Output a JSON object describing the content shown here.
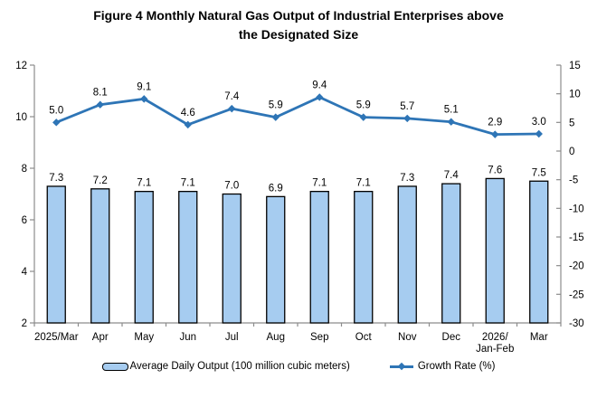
{
  "title": "Figure 4 Monthly Natural Gas Output of Industrial Enterprises above\nthe Designated Size",
  "chart_data": {
    "type": "combo",
    "title": "Figure 4 Monthly Natural Gas Output of Industrial Enterprises above the Designated Size",
    "categories": [
      "2025/Mar",
      "Apr",
      "May",
      "Jun",
      "Jul",
      "Aug",
      "Sep",
      "Oct",
      "Nov",
      "Dec",
      "2026/\nJan-Feb",
      "Mar"
    ],
    "series": [
      {
        "name": "Average Daily Output (100 million cubic meters)",
        "type": "bar",
        "axis": "left",
        "values": [
          7.3,
          7.2,
          7.1,
          7.1,
          7.0,
          6.9,
          7.1,
          7.1,
          7.3,
          7.4,
          7.6,
          7.5
        ]
      },
      {
        "name": "Growth Rate (%)",
        "type": "line",
        "axis": "right",
        "values": [
          5.0,
          8.1,
          9.1,
          4.6,
          7.4,
          5.9,
          9.4,
          5.9,
          5.7,
          5.1,
          2.9,
          3.0
        ]
      }
    ],
    "left_axis": {
      "min": 2,
      "max": 12,
      "ticks": [
        12,
        10,
        8,
        6,
        4,
        2
      ]
    },
    "right_axis": {
      "min": -30,
      "max": 15,
      "ticks": [
        15,
        10,
        5,
        0,
        -5,
        -10,
        -15,
        -20,
        -25,
        -30
      ]
    },
    "grid": false,
    "legend_position": "bottom",
    "data_labels": true,
    "colors": {
      "bar_fill": "#A6CCF0",
      "bar_border": "#000000",
      "line": "#2E75B6",
      "axis": "#8C8C8C",
      "text": "#000000"
    }
  },
  "legend": {
    "bar_label": "Average Daily Output (100 million cubic meters)",
    "line_label": "Growth Rate (%)"
  }
}
